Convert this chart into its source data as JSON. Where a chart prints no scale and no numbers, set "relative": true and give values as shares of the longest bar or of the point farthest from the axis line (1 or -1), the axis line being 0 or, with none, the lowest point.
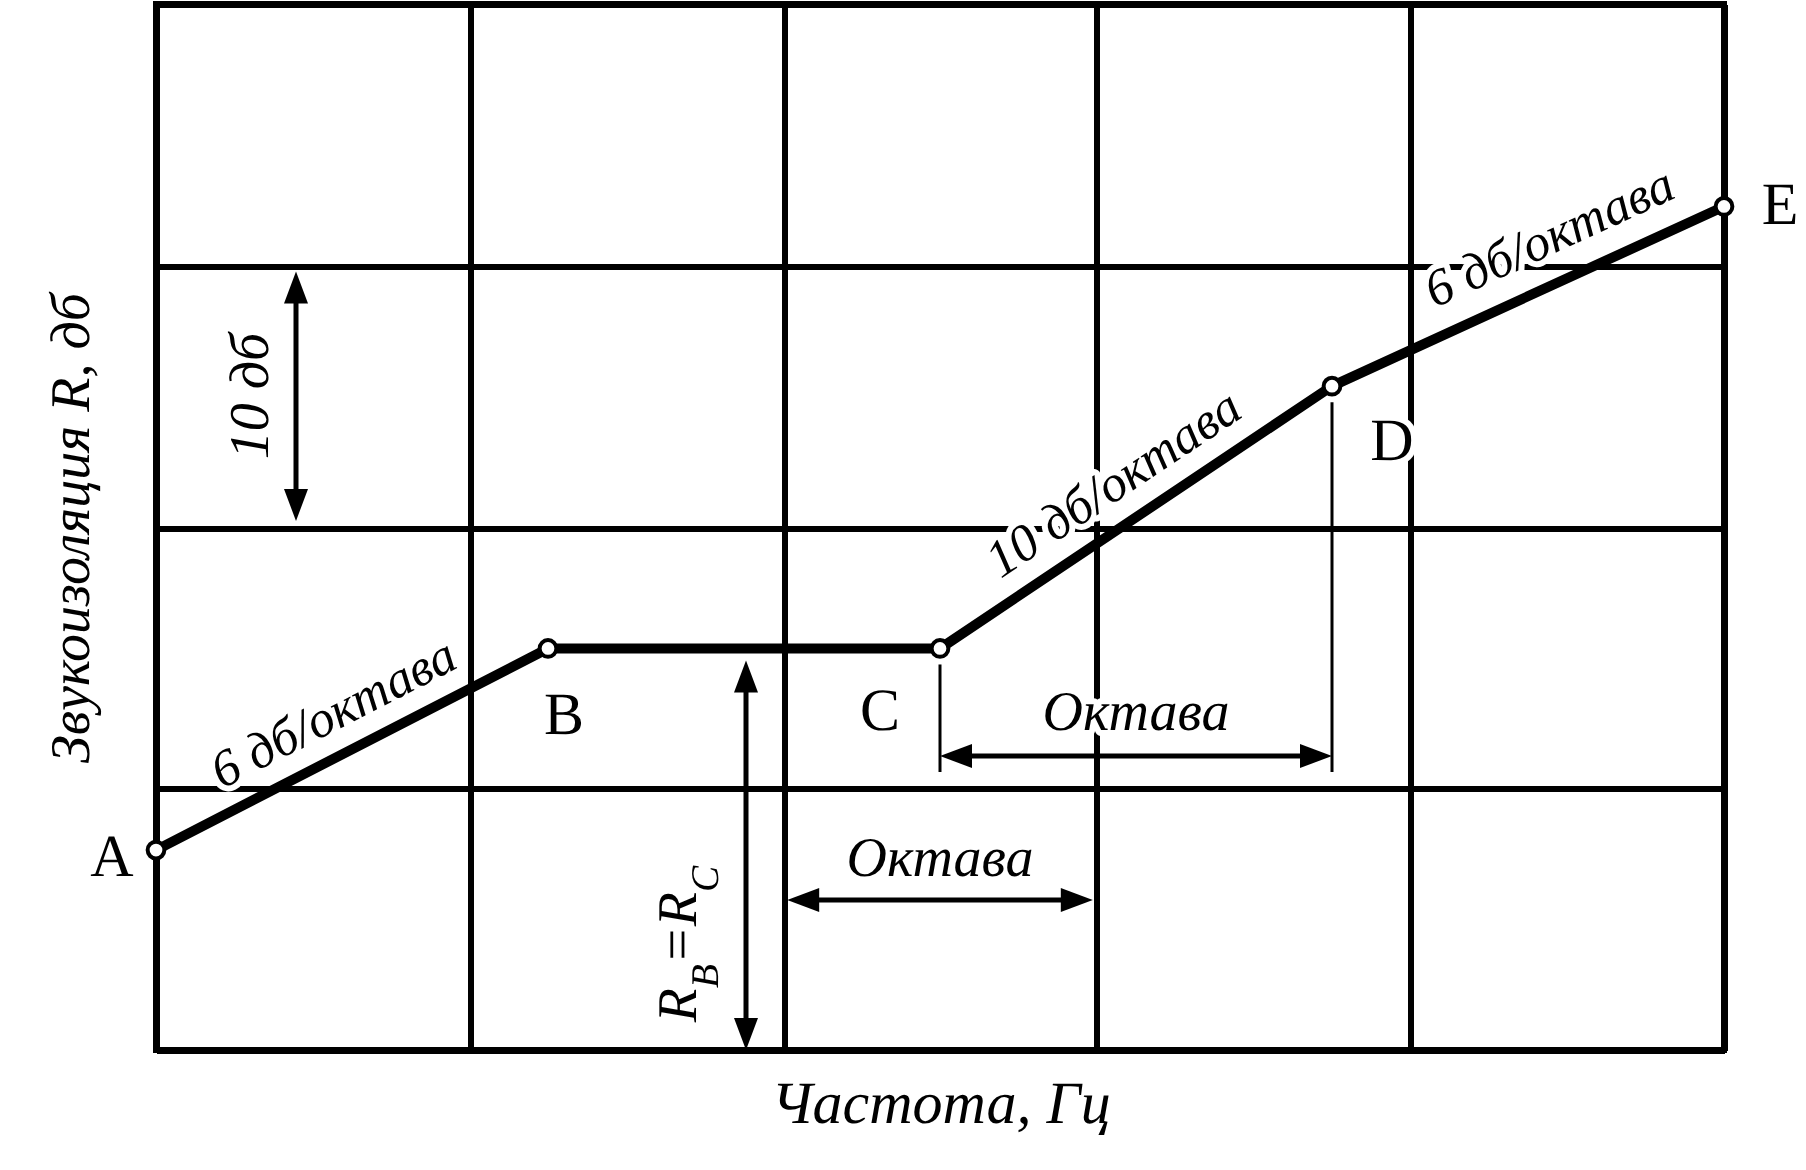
{
  "chart_data": {
    "type": "line",
    "xlabel": "Частота, Гц",
    "ylabel": "Звукоизоляция R, дб",
    "categories": [
      null,
      null,
      null,
      null,
      null
    ],
    "values": [
      0.237,
      0.476,
      0.476,
      0.787,
      1
    ],
    "color": "#000000",
    "relative": true,
    "tick_labels": false,
    "grid": true,
    "marker": "circle",
    "line_style": "solid",
    "annotations": [
      "A",
      "B",
      "C",
      "D",
      "E",
      "6 дб/октава",
      "10 дб/октава",
      "6 дб/октава",
      "10 дб",
      "Октава",
      "Октава",
      "R$_{B}$=R$_{C}$"
    ]
  }
}
